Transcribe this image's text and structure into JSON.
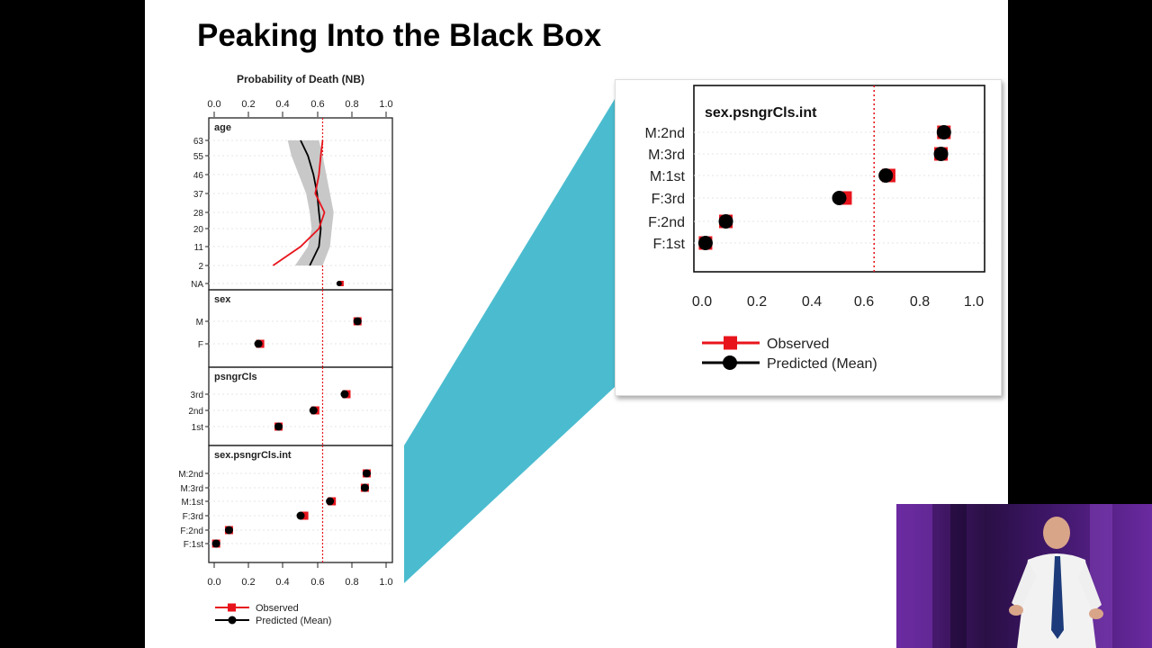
{
  "slide": {
    "title": "Peaking Into the Black Box"
  },
  "colors": {
    "observed": "#e8141c",
    "predicted": "#000000",
    "ci_band": "#c8c8c8",
    "mean_line": "#e8141c",
    "callout": "#4bbccf",
    "video_bg": "#3a1560"
  },
  "chart_data": [
    {
      "type": "scatter",
      "title": "Probability of Death (NB)",
      "xlim": [
        0,
        1
      ],
      "x_ticks": [
        "0.0",
        "0.2",
        "0.4",
        "0.6",
        "0.8",
        "1.0"
      ],
      "reference_line_x": 0.62,
      "legend": {
        "position": "bottom-left",
        "entries": [
          {
            "name": "Observed",
            "color": "#e8141c",
            "marker": "square"
          },
          {
            "name": "Predicted (Mean)",
            "color": "#000000",
            "marker": "circle"
          }
        ]
      },
      "panels": [
        {
          "name": "age",
          "kind": "curve",
          "categories": [
            "63",
            "55",
            "46",
            "37",
            "28",
            "20",
            "11",
            "2",
            "NA"
          ],
          "observed_curve": [
            [
              0.62,
              63
            ],
            [
              0.61,
              55
            ],
            [
              0.6,
              46
            ],
            [
              0.58,
              37
            ],
            [
              0.63,
              28
            ],
            [
              0.6,
              20
            ],
            [
              0.5,
              11
            ],
            [
              0.35,
              2
            ]
          ],
          "predicted_curve": [
            [
              0.5,
              63
            ],
            [
              0.54,
              55
            ],
            [
              0.57,
              46
            ],
            [
              0.59,
              37
            ],
            [
              0.6,
              28
            ],
            [
              0.61,
              20
            ],
            [
              0.6,
              11
            ],
            [
              0.55,
              2
            ]
          ],
          "ci_band": {
            "lower": [
              [
                0.43,
                63
              ],
              [
                0.45,
                55
              ],
              [
                0.49,
                46
              ],
              [
                0.53,
                37
              ],
              [
                0.55,
                28
              ],
              [
                0.56,
                20
              ],
              [
                0.54,
                11
              ],
              [
                0.47,
                2
              ]
            ],
            "upper": [
              [
                0.6,
                63
              ],
              [
                0.62,
                55
              ],
              [
                0.64,
                46
              ],
              [
                0.66,
                37
              ],
              [
                0.68,
                28
              ],
              [
                0.67,
                20
              ],
              [
                0.66,
                11
              ],
              [
                0.62,
                2
              ]
            ]
          },
          "na_point": {
            "observed": 0.72,
            "predicted": 0.71
          }
        },
        {
          "name": "sex",
          "kind": "points",
          "categories": [
            "M",
            "F"
          ],
          "observed": [
            0.81,
            0.28
          ],
          "predicted": [
            0.81,
            0.27
          ]
        },
        {
          "name": "psngrCls",
          "kind": "points",
          "categories": [
            "3rd",
            "2nd",
            "1st"
          ],
          "observed": [
            0.75,
            0.58,
            0.38
          ],
          "predicted": [
            0.74,
            0.57,
            0.38
          ]
        },
        {
          "name": "sex.psngrCls.int",
          "kind": "points",
          "categories": [
            "M:2nd",
            "M:3rd",
            "M:1st",
            "F:3rd",
            "F:2nd",
            "F:1st"
          ],
          "observed": [
            0.86,
            0.85,
            0.67,
            0.52,
            0.11,
            0.04
          ],
          "predicted": [
            0.86,
            0.85,
            0.66,
            0.5,
            0.11,
            0.04
          ]
        }
      ]
    },
    {
      "type": "scatter",
      "xlim": [
        0,
        1
      ],
      "x_ticks": [
        "0.0",
        "0.2",
        "0.4",
        "0.6",
        "0.8",
        "1.0"
      ],
      "reference_line_x": 0.62,
      "legend": {
        "position": "bottom-left",
        "entries": [
          {
            "name": "Observed",
            "color": "#e8141c",
            "marker": "square"
          },
          {
            "name": "Predicted (Mean)",
            "color": "#000000",
            "marker": "circle"
          }
        ]
      },
      "panels": [
        {
          "name": "sex.psngrCls.int",
          "kind": "points",
          "categories": [
            "M:2nd",
            "M:3rd",
            "M:1st",
            "F:3rd",
            "F:2nd",
            "F:1st"
          ],
          "observed": [
            0.86,
            0.85,
            0.67,
            0.52,
            0.11,
            0.04
          ],
          "predicted": [
            0.86,
            0.85,
            0.66,
            0.5,
            0.11,
            0.04
          ]
        }
      ]
    }
  ]
}
